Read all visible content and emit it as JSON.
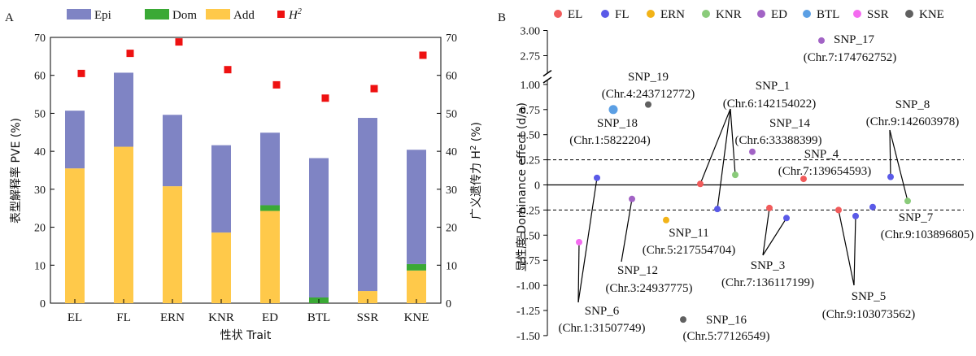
{
  "chart_data": [
    {
      "type": "bar",
      "panel_label": "A",
      "categories": [
        "EL",
        "FL",
        "ERN",
        "KNR",
        "ED",
        "BTL",
        "SSR",
        "KNE"
      ],
      "series": [
        {
          "name": "Add",
          "color": "#FFC94A",
          "values": [
            35.5,
            41.2,
            30.8,
            18.6,
            24.3,
            0,
            3.2,
            8.6
          ]
        },
        {
          "name": "Dom",
          "color": "#3AA935",
          "values": [
            0,
            0,
            0,
            0,
            1.5,
            1.5,
            0,
            1.7
          ]
        },
        {
          "name": "Epi",
          "color": "#7F84C4",
          "values": [
            15.2,
            19.5,
            18.8,
            23.0,
            19.1,
            36.7,
            45.6,
            30.1
          ]
        }
      ],
      "overlay": {
        "name": "H²",
        "legend_base": "H",
        "legend_sup": "2",
        "color": "#EE1111",
        "marker": "square",
        "values": [
          60.5,
          65.8,
          68.8,
          61.5,
          57.5,
          54.0,
          56.5,
          65.3
        ]
      },
      "xlabel": "性状 Trait",
      "ylabel": "表型解释率 PVE (%)",
      "y2label_base": "广义遗传力 H",
      "y2label_sup": "2",
      "y2label_tail": " (%)",
      "ylim": [
        0,
        70
      ],
      "yticks": [
        "0",
        "10",
        "20",
        "30",
        "40",
        "50",
        "60",
        "70"
      ],
      "legend_order": [
        "Epi",
        "Dom",
        "Add",
        "H²"
      ]
    },
    {
      "type": "scatter",
      "panel_label": "B",
      "ylabel": "显性度 Dominance effect (d/a)",
      "axis_break": [
        1.0,
        2.5
      ],
      "ylim": [
        -1.5,
        3.0
      ],
      "yticks": [
        "-1.50",
        "-1.25",
        "-1.00",
        "-0.75",
        "-0.50",
        "-0.25",
        "0",
        "0.25",
        "0.50",
        "0.75",
        "1.00",
        "2.75",
        "3.00"
      ],
      "threshold_lines": [
        0.25,
        -0.25
      ],
      "legend": [
        {
          "name": "EL",
          "color": "#F15B5B"
        },
        {
          "name": "FL",
          "color": "#5A5AE8"
        },
        {
          "name": "ERN",
          "color": "#F2B318"
        },
        {
          "name": "KNR",
          "color": "#8ACB7A"
        },
        {
          "name": "ED",
          "color": "#A263C5"
        },
        {
          "name": "BTL",
          "color": "#5B9FE4"
        },
        {
          "name": "SSR",
          "color": "#F46BF0"
        },
        {
          "name": "KNE",
          "color": "#606060"
        }
      ],
      "points": [
        {
          "trait": "SSR",
          "x": 1,
          "y": -0.57
        },
        {
          "trait": "FL",
          "x": 2,
          "y": 0.07
        },
        {
          "trait": "BTL",
          "x": 3,
          "y": 0.75
        },
        {
          "trait": "ED",
          "x": 4,
          "y": -0.14
        },
        {
          "trait": "KNE",
          "x": 5,
          "y": 0.8
        },
        {
          "trait": "ERN",
          "x": 6,
          "y": -0.35
        },
        {
          "trait": "KNE",
          "x": 7,
          "y": -1.34
        },
        {
          "trait": "EL",
          "x": 8,
          "y": 0.01
        },
        {
          "trait": "FL",
          "x": 9,
          "y": -0.24
        },
        {
          "trait": "KNR",
          "x": 10,
          "y": 0.1
        },
        {
          "trait": "ED",
          "x": 11,
          "y": 0.33
        },
        {
          "trait": "EL",
          "x": 12,
          "y": -0.23
        },
        {
          "trait": "FL",
          "x": 13,
          "y": -0.33
        },
        {
          "trait": "EL",
          "x": 14,
          "y": 0.06
        },
        {
          "trait": "ED",
          "x": 15,
          "y": 2.9
        },
        {
          "trait": "EL",
          "x": 16,
          "y": -0.25
        },
        {
          "trait": "FL",
          "x": 17,
          "y": -0.31
        },
        {
          "trait": "FL",
          "x": 18,
          "y": -0.22
        },
        {
          "trait": "FL",
          "x": 19,
          "y": 0.08
        },
        {
          "trait": "KNR",
          "x": 20,
          "y": -0.16
        }
      ],
      "annotations": [
        {
          "snp": "SNP_18",
          "pos": "(Chr.1:5822204)"
        },
        {
          "snp": "SNP_19",
          "pos": "(Chr.4:243712772)"
        },
        {
          "snp": "SNP_1",
          "pos": "(Chr.6:142154022)"
        },
        {
          "snp": "SNP_14",
          "pos": "(Chr.6:33388399)"
        },
        {
          "snp": "SNP_4",
          "pos": "(Chr.7:139654593)"
        },
        {
          "snp": "SNP_17",
          "pos": "(Chr.7:174762752)"
        },
        {
          "snp": "SNP_8",
          "pos": "(Chr.9:142603978)"
        },
        {
          "snp": "SNP_7",
          "pos": "(Chr.9:103896805)"
        },
        {
          "snp": "SNP_11",
          "pos": "(Chr.5:217554704)"
        },
        {
          "snp": "SNP_12",
          "pos": "(Chr.3:24937775)"
        },
        {
          "snp": "SNP_3",
          "pos": "(Chr.7:136117199)"
        },
        {
          "snp": "SNP_5",
          "pos": "(Chr.9:103073562)"
        },
        {
          "snp": "SNP_6",
          "pos": "(Chr.1:31507749)"
        },
        {
          "snp": "SNP_16",
          "pos": "(Chr.5:77126549)"
        }
      ]
    }
  ]
}
